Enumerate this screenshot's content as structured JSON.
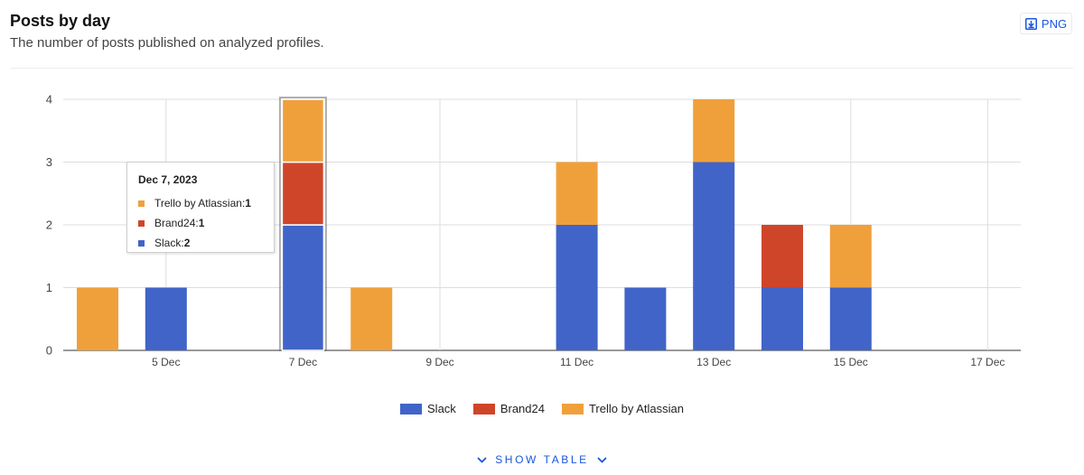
{
  "header": {
    "title": "Posts by day",
    "subtitle": "The number of posts published on analyzed profiles.",
    "png_label": "PNG"
  },
  "chart_data": {
    "type": "bar",
    "stacked": true,
    "categories": [
      "4 Dec",
      "5 Dec",
      "6 Dec",
      "7 Dec",
      "8 Dec",
      "9 Dec",
      "10 Dec",
      "11 Dec",
      "12 Dec",
      "13 Dec",
      "14 Dec",
      "15 Dec",
      "16 Dec",
      "17 Dec"
    ],
    "tick_labels": [
      "5 Dec",
      "7 Dec",
      "9 Dec",
      "11 Dec",
      "13 Dec",
      "15 Dec",
      "17 Dec"
    ],
    "series": [
      {
        "name": "Slack",
        "color": "#4064c8",
        "values": [
          0,
          1,
          0,
          2,
          0,
          0,
          0,
          2,
          1,
          3,
          1,
          1,
          0,
          0
        ]
      },
      {
        "name": "Brand24",
        "color": "#cf4529",
        "values": [
          0,
          0,
          0,
          1,
          0,
          0,
          0,
          0,
          0,
          0,
          1,
          0,
          0,
          0
        ]
      },
      {
        "name": "Trello by Atlassian",
        "color": "#f0a03b",
        "values": [
          1,
          0,
          0,
          1,
          1,
          0,
          0,
          1,
          0,
          1,
          0,
          1,
          0,
          0
        ]
      }
    ],
    "y_ticks": [
      0,
      1,
      2,
      3,
      4
    ],
    "ylim": [
      0,
      4
    ],
    "grid": true,
    "legend_position": "bottom",
    "highlighted_category": "7 Dec"
  },
  "tooltip": {
    "date": "Dec 7, 2023",
    "rows": [
      {
        "name": "Trello by Atlassian",
        "sep": ": ",
        "value": "1",
        "color": "#f0a03b"
      },
      {
        "name": "Brand24",
        "sep": ": ",
        "value": "1",
        "color": "#cf4529"
      },
      {
        "name": "Slack",
        "sep": ": ",
        "value": "2",
        "color": "#4064c8"
      }
    ]
  },
  "footer": {
    "show_table_label": "SHOW TABLE"
  }
}
